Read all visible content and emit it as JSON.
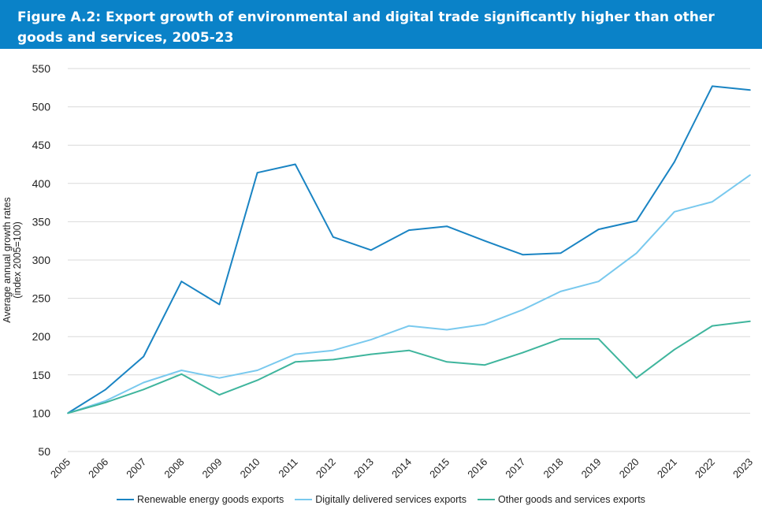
{
  "header": {
    "title": "Figure A.2: Export growth of environmental and digital trade significantly higher than other goods and services, 2005-23"
  },
  "colors": {
    "header_bg": "#0a82c8",
    "renewable": "#1a84c3",
    "digital": "#79c9ee",
    "other": "#3fb59d",
    "grid": "#d9d9d9"
  },
  "chart_data": {
    "type": "line",
    "title": "Figure A.2: Export growth of environmental and digital trade significantly higher than other goods and services, 2005-23",
    "xlabel": "",
    "ylabel_lines": [
      "Average annual growth rates",
      "(index 2005=100)"
    ],
    "ylim": [
      50,
      550
    ],
    "yticks": [
      50,
      100,
      150,
      200,
      250,
      300,
      350,
      400,
      450,
      500,
      550
    ],
    "grid": true,
    "legend_position": "bottom",
    "x": [
      "2005",
      "2006",
      "2007",
      "2008",
      "2009",
      "2010",
      "2011",
      "2012",
      "2013",
      "2014",
      "2015",
      "2016",
      "2017",
      "2018",
      "2019",
      "2020",
      "2021",
      "2022",
      "2023"
    ],
    "series": [
      {
        "name": "Renewable energy goods exports",
        "color": "#1a84c3",
        "values": [
          100,
          131,
          174,
          272,
          242,
          414,
          425,
          330,
          313,
          339,
          344,
          325,
          307,
          309,
          340,
          351,
          428,
          527,
          522
        ]
      },
      {
        "name": "Digitally delivered services exports",
        "color": "#79c9ee",
        "values": [
          100,
          116,
          140,
          156,
          146,
          156,
          177,
          182,
          196,
          214,
          209,
          216,
          235,
          259,
          272,
          309,
          363,
          376,
          411
        ]
      },
      {
        "name": "Other goods and services exports",
        "color": "#3fb59d",
        "values": [
          100,
          114,
          131,
          151,
          124,
          143,
          167,
          170,
          177,
          182,
          167,
          163,
          179,
          197,
          197,
          146,
          183,
          214,
          220
        ]
      }
    ]
  }
}
